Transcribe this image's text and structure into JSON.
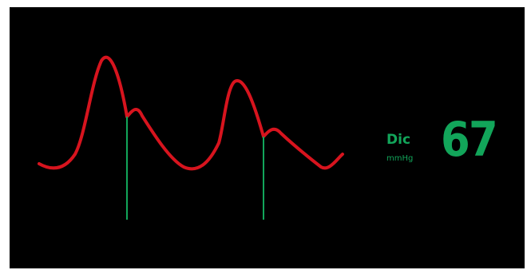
{
  "monitor": {
    "parameter_label": "Dic",
    "unit": "mmHg",
    "value": "67"
  },
  "colors": {
    "background": "#000000",
    "waveform": "#d7141e",
    "marker": "#12a55a",
    "readout": "#12a55a"
  }
}
